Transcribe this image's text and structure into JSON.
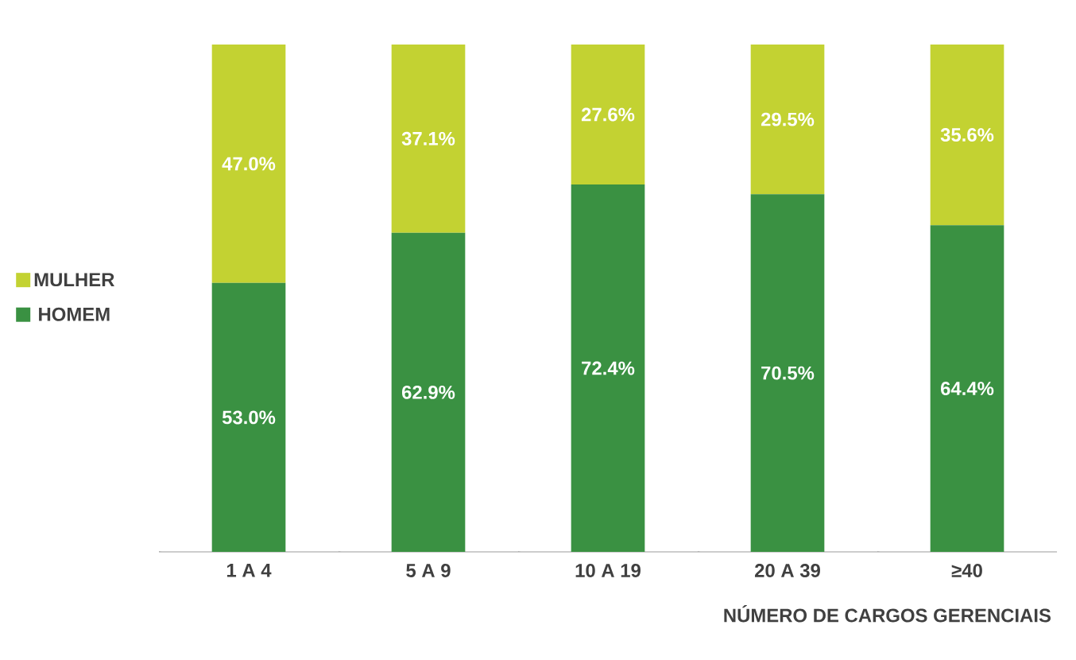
{
  "chart_data": {
    "type": "bar",
    "stacked": true,
    "xlabel": "NÚMERO DE CARGOS GERENCIAIS",
    "categories": [
      "1 A 4",
      "5 A 9",
      "10 A 19",
      "20 A 39",
      "≥40"
    ],
    "series": [
      {
        "name": "HOMEM",
        "color": "#3a9142",
        "values": [
          53.0,
          62.9,
          72.4,
          70.5,
          64.4
        ],
        "value_labels": [
          "53.0%",
          "62.9%",
          "72.4%",
          "70.5%",
          "64.4%"
        ]
      },
      {
        "name": "MULHER",
        "color": "#c3d232",
        "values": [
          47.0,
          37.1,
          27.6,
          29.5,
          35.6
        ],
        "value_labels": [
          "47.0%",
          "37.1%",
          "27.6%",
          "29.5%",
          "35.6%"
        ]
      }
    ],
    "tick_labels": "x",
    "legend": "left"
  }
}
